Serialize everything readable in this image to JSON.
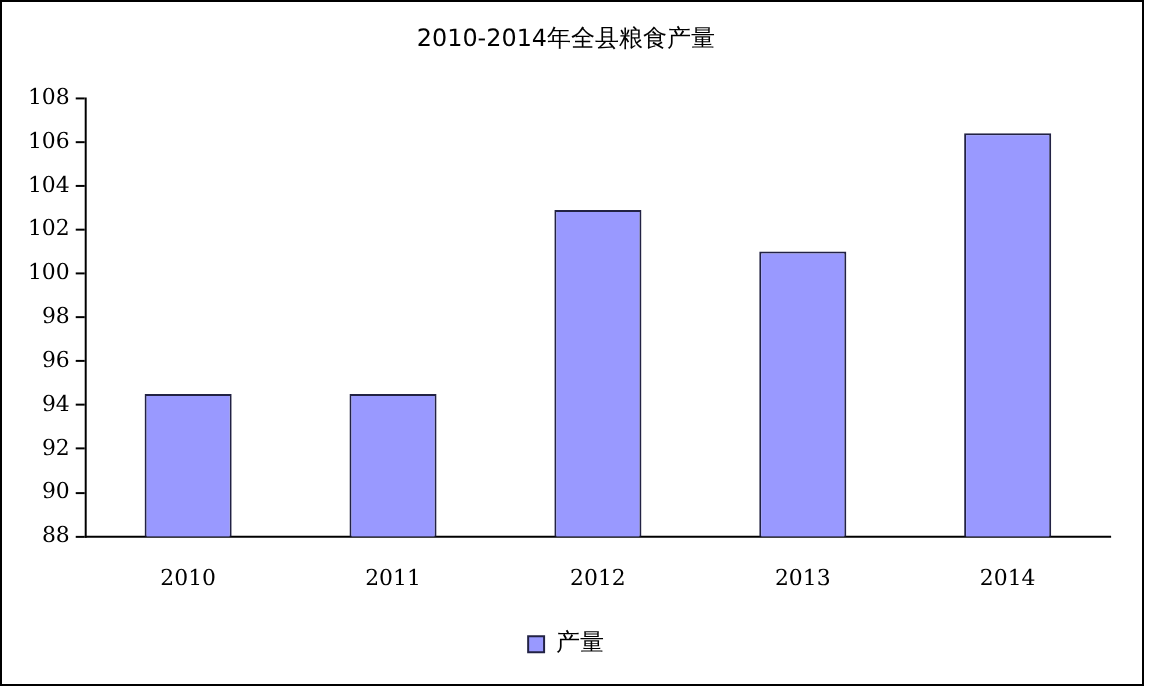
{
  "chart_data": {
    "type": "bar",
    "title": "2010-2014年全县粮食产量",
    "categories": [
      "2010",
      "2011",
      "2012",
      "2013",
      "2014"
    ],
    "series": [
      {
        "name": "产量",
        "color": "#9999ff",
        "values": [
          94.5,
          94.5,
          102.9,
          101.0,
          106.4
        ]
      }
    ],
    "ylim": [
      88,
      108
    ],
    "yticks": [
      88,
      90,
      92,
      94,
      96,
      98,
      100,
      102,
      104,
      106,
      108
    ],
    "grid": false,
    "legend": "bottom"
  }
}
